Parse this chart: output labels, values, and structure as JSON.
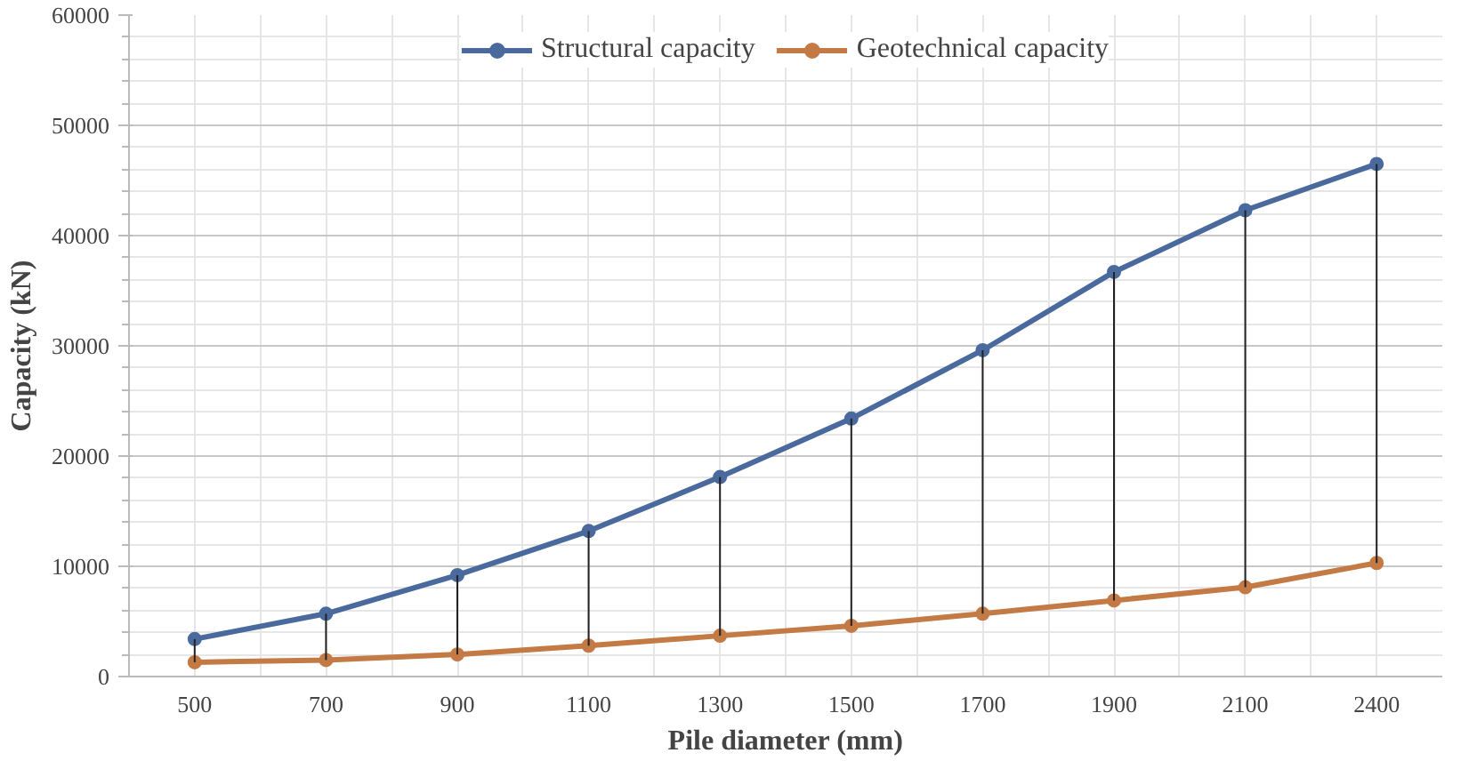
{
  "chart_data": {
    "type": "line",
    "xlabel": "Pile diameter (mm)",
    "ylabel": "Capacity (kN)",
    "categories": [
      "500",
      "700",
      "900",
      "1100",
      "1300",
      "1500",
      "1700",
      "1900",
      "2100",
      "2400"
    ],
    "series": [
      {
        "name": "Structural capacity",
        "color": "#4a6a9e",
        "values": [
          3400,
          5700,
          9200,
          13200,
          18100,
          23400,
          29600,
          36700,
          42300,
          46500
        ]
      },
      {
        "name": "Geotechnical capacity",
        "color": "#c47a45",
        "values": [
          1300,
          1500,
          2000,
          2800,
          3700,
          4600,
          5700,
          6900,
          8100,
          10300
        ],
        "errors": [
          [
            1300,
            3400
          ],
          [
            1500,
            5700
          ],
          [
            2000,
            9200
          ],
          [
            2800,
            13200
          ],
          [
            3700,
            18100
          ],
          [
            4600,
            23400
          ],
          [
            5700,
            29600
          ],
          [
            6900,
            36700
          ],
          [
            8100,
            42300
          ],
          [
            10300,
            46500
          ]
        ]
      }
    ],
    "ylim": [
      0,
      60000
    ],
    "yticks": [
      0,
      10000,
      20000,
      30000,
      40000,
      50000,
      60000
    ],
    "grid": true,
    "legend": "top",
    "marker": "circle",
    "line_style": "solid"
  }
}
